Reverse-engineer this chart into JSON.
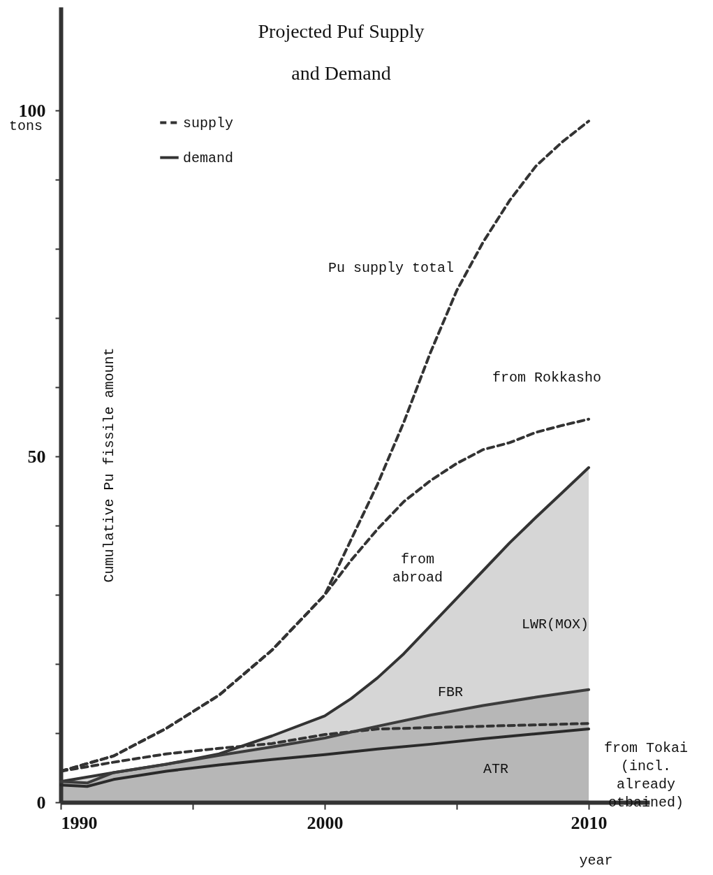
{
  "chart_data": {
    "type": "line",
    "title": "Projected Puf Supply\nand Demand",
    "xlabel": "year",
    "ylabel": "Cumulative Pu fissile amount",
    "xlim": [
      1990,
      2012.3
    ],
    "xticks": [
      1990,
      {
        "value": 1995,
        "label": null
      },
      2000,
      {
        "value": 2005,
        "label": null
      },
      2010
    ],
    "ylim": [
      0,
      115
    ],
    "yticks": [
      0,
      {
        "value": 10,
        "label": null
      },
      {
        "value": 20,
        "label": null
      },
      {
        "value": 30,
        "label": null
      },
      {
        "value": 40,
        "label": null
      },
      50,
      {
        "value": 60,
        "label": null
      },
      {
        "value": 70,
        "label": null
      },
      {
        "value": 80,
        "label": null
      },
      {
        "value": 90,
        "label": null
      },
      100
    ],
    "legend": "top left",
    "grid": false,
    "series": [
      {
        "type": "line",
        "name": "supply",
        "color": "#333333",
        "line_style": "dashed",
        "x": [
          1990,
          1992,
          1994,
          1996,
          1998,
          2000,
          2001,
          2002,
          2003,
          2004,
          2005,
          2006,
          2007,
          2008,
          2009,
          2010
        ],
        "values": [
          4.5,
          6.7,
          10.7,
          15.5,
          22,
          30,
          38,
          46,
          55,
          65,
          74,
          81,
          87,
          92,
          95.5,
          98.5
        ]
      },
      {
        "type": "line",
        "color": "#333333",
        "line_style": "dashed",
        "x": [
          1990,
          1992,
          1994,
          1996,
          1998,
          2000,
          2001,
          2002,
          2003,
          2004,
          2005,
          2006,
          2007,
          2008,
          2009,
          2010
        ],
        "values": [
          4.5,
          6.7,
          10.7,
          15.5,
          22,
          30,
          35,
          39.5,
          43.5,
          46.5,
          49,
          51,
          52,
          53.5,
          54.5,
          55.4
        ]
      },
      {
        "type": "line",
        "color": "#333333",
        "line_style": "dashed",
        "x": [
          1990,
          1992,
          1994,
          1996,
          1998,
          2000,
          2002,
          2004,
          2006,
          2008,
          2010
        ],
        "values": [
          4.5,
          5.8,
          7,
          7.8,
          8.5,
          9.8,
          10.6,
          10.8,
          11,
          11.2,
          11.4
        ]
      },
      {
        "type": "area",
        "name": "demand",
        "color": "#333333",
        "line_style": "solid",
        "x": [
          1990,
          1992,
          1994,
          1996,
          1998,
          2000,
          2001,
          2002,
          2003,
          2004,
          2005,
          2006,
          2007,
          2008,
          2009,
          2010
        ],
        "values": [
          3,
          4.3,
          5.5,
          7,
          9.6,
          12.5,
          15,
          18,
          21.5,
          25.5,
          29.5,
          33.5,
          37.5,
          41.2,
          44.8,
          48.4
        ]
      },
      {
        "type": "area",
        "color": "#3c3c3c",
        "line_style": "solid",
        "x": [
          1990,
          1991,
          1992,
          1994,
          1996,
          1998,
          2000,
          2002,
          2004,
          2006,
          2008,
          2010
        ],
        "values": [
          3,
          2.8,
          4.3,
          5.5,
          6.8,
          8,
          9.3,
          11,
          12.6,
          14,
          15.2,
          16.3
        ]
      },
      {
        "type": "line",
        "color": "#2a2a2a",
        "line_style": "solid",
        "x": [
          1990,
          1991,
          1992,
          1994,
          1996,
          1998,
          2000,
          2002,
          2004,
          2006,
          2008,
          2010
        ],
        "values": [
          2.5,
          2.3,
          3.3,
          4.5,
          5.4,
          6.2,
          6.9,
          7.7,
          8.4,
          9.2,
          9.9,
          10.6
        ]
      }
    ],
    "annotations": [
      "tons",
      "Pu supply total",
      "from Rokkasho",
      "from\nabroad",
      "LWR(MOX)",
      "FBR",
      "from Tokai\n(incl.\nalready\notbained)",
      "ATR"
    ]
  }
}
